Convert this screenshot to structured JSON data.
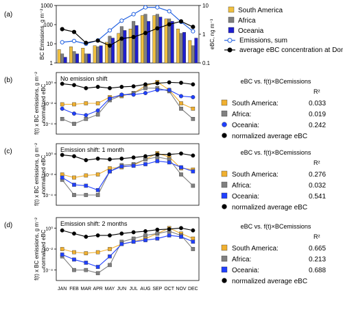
{
  "chart_data": [
    {
      "panel_label": "(a)",
      "type": "bar",
      "ylabel_left": "BC Emissions, g m⁻²",
      "ylabel_right": "eBC, ng m⁻³",
      "yscale": "log",
      "ylim": [
        1,
        1000
      ],
      "yticks": [
        "1",
        "10",
        "100",
        "1000"
      ],
      "ylim_right": [
        0.1,
        10
      ],
      "yticks_right": [
        "0.1",
        "1",
        "10"
      ],
      "categories": [
        "JAN",
        "FEB",
        "MAR",
        "APR",
        "MAY",
        "JUN",
        "JUL",
        "AUG",
        "SEP",
        "OCT",
        "NOV",
        "DEC"
      ],
      "series": [
        {
          "name": "South America",
          "color": "#f0c040",
          "values": [
            5,
            7,
            6,
            8,
            12,
            35,
            60,
            300,
            300,
            200,
            60,
            15
          ]
        },
        {
          "name": "Africa",
          "color": "#7f7f7f",
          "values": [
            3,
            4,
            3,
            7,
            25,
            80,
            150,
            350,
            350,
            200,
            35,
            8
          ]
        },
        {
          "name": "Oceania",
          "color": "#1f1fd0",
          "values": [
            2,
            3,
            3,
            8,
            20,
            50,
            90,
            150,
            250,
            150,
            40,
            20
          ]
        }
      ],
      "lines": [
        {
          "name": "Emissions, sum",
          "color": "#1f5fe0",
          "marker": "open-circle",
          "values": [
            12,
            14,
            10,
            15,
            50,
            160,
            350,
            800,
            800,
            500,
            140,
            45
          ]
        },
        {
          "name": "average eBC concentration at Dome C",
          "color": "#000000",
          "marker": "filled-circle",
          "axis": "right",
          "values": [
            1.5,
            1.2,
            0.5,
            0.6,
            0.4,
            0.7,
            0.8,
            1.1,
            1.6,
            2.2,
            2.8,
            1.8
          ]
        }
      ]
    },
    {
      "panel_label": "(b)",
      "type": "line",
      "annotation": "No emission shift",
      "ylabel": "f(t) x BC emissions, g m⁻² normalized eBC",
      "yscale": "log",
      "ylim": [
        1e-05,
        10
      ],
      "yticks": [
        "10⁻⁴",
        "10⁻²",
        "10⁰"
      ],
      "categories": [
        "JAN",
        "FEB",
        "MAR",
        "APR",
        "MAY",
        "JUN",
        "JUL",
        "AUG",
        "SEP",
        "OCT",
        "NOV",
        "DEC"
      ],
      "legend_title": "eBC vs. f(t)×BCemissions",
      "legend_r2_header": "R²",
      "series": [
        {
          "name": "South America:",
          "color": "#f0b030",
          "marker": "square",
          "r2": "0.033",
          "values": [
            0.008,
            0.008,
            0.01,
            0.01,
            0.04,
            0.05,
            0.1,
            0.5,
            1.2,
            0.2,
            0.01,
            0.003
          ]
        },
        {
          "name": "Africa:",
          "color": "#808080",
          "marker": "square",
          "r2": "0.019",
          "values": [
            0.0003,
            0.0001,
            0.0003,
            0.0008,
            0.02,
            0.06,
            0.1,
            0.3,
            0.3,
            0.15,
            0.003,
            0.0003
          ]
        },
        {
          "name": "Oceania:",
          "color": "#2040ff",
          "marker": "circle",
          "r2": "0.242",
          "values": [
            0.003,
            0.001,
            0.0007,
            0.002,
            0.03,
            0.07,
            0.07,
            0.1,
            0.2,
            0.2,
            0.05,
            0.04
          ]
        },
        {
          "name": "normalized average eBC",
          "color": "#000000",
          "marker": "circle",
          "values": [
            0.8,
            0.6,
            0.3,
            0.4,
            0.3,
            0.4,
            0.45,
            0.7,
            0.9,
            1.1,
            1.0,
            0.7
          ]
        }
      ]
    },
    {
      "panel_label": "(c)",
      "type": "line",
      "annotation": "Emission shift: 1 month",
      "ylabel": "f(t) x BC emissions, g m⁻² normalized eBC",
      "yscale": "log",
      "ylim": [
        1e-05,
        10
      ],
      "yticks": [
        "10⁻⁴",
        "10⁻²",
        "10⁰"
      ],
      "categories": [
        "JAN",
        "FEB",
        "MAR",
        "APR",
        "MAY",
        "JUN",
        "JUL",
        "AUG",
        "SEP",
        "OCT",
        "NOV",
        "DEC"
      ],
      "legend_title": "eBC vs. f(t)×BCemissions",
      "legend_r2_header": "R²",
      "series": [
        {
          "name": "South America:",
          "color": "#f0b030",
          "marker": "square",
          "r2": "0.276",
          "values": [
            0.01,
            0.005,
            0.008,
            0.01,
            0.04,
            0.05,
            0.08,
            0.3,
            1.2,
            0.5,
            0.04,
            0.03
          ]
        },
        {
          "name": "Africa:",
          "color": "#808080",
          "marker": "square",
          "r2": "0.032",
          "values": [
            0.003,
            0.0001,
            0.0001,
            0.0001,
            0.02,
            0.08,
            0.1,
            0.3,
            0.5,
            0.3,
            0.01,
            0.0008
          ]
        },
        {
          "name": "Oceania:",
          "color": "#2040ff",
          "marker": "square",
          "r2": "0.541",
          "values": [
            0.005,
            0.001,
            0.0008,
            0.0003,
            0.02,
            0.06,
            0.07,
            0.1,
            0.2,
            0.15,
            0.05,
            0.02
          ]
        },
        {
          "name": "normalized average eBC",
          "color": "#000000",
          "marker": "circle",
          "values": [
            0.8,
            0.6,
            0.25,
            0.35,
            0.3,
            0.35,
            0.45,
            0.6,
            0.9,
            0.9,
            1.1,
            0.7
          ]
        }
      ]
    },
    {
      "panel_label": "(d)",
      "type": "line",
      "annotation": "Emission shift: 2 months",
      "ylabel": "f(t) x BC emissions, g m⁻² normalized eBC",
      "yscale": "log",
      "ylim": [
        1e-05,
        10
      ],
      "yticks": [
        "10⁻⁴",
        "10⁻²",
        "10⁰"
      ],
      "categories": [
        "JAN",
        "FEB",
        "MAR",
        "APR",
        "MAY",
        "JUN",
        "JUL",
        "AUG",
        "SEP",
        "OCT",
        "NOV",
        "DEC"
      ],
      "legend_title": "eBC vs. f(t)×BCemissions",
      "legend_r2_header": "R²",
      "series": [
        {
          "name": "South America:",
          "color": "#f0b030",
          "marker": "square",
          "r2": "0.665",
          "values": [
            0.01,
            0.005,
            0.004,
            0.005,
            0.01,
            0.03,
            0.05,
            0.1,
            0.3,
            1.0,
            0.3,
            0.1
          ]
        },
        {
          "name": "Africa:",
          "color": "#808080",
          "marker": "square",
          "r2": "0.213",
          "values": [
            0.002,
            0.0001,
            0.0001,
            5e-05,
            0.0003,
            0.05,
            0.1,
            0.2,
            0.3,
            0.5,
            0.2,
            0.01
          ]
        },
        {
          "name": "Oceania:",
          "color": "#2040ff",
          "marker": "square",
          "r2": "0.688",
          "values": [
            0.003,
            0.001,
            0.0005,
            0.0002,
            0.002,
            0.03,
            0.05,
            0.07,
            0.1,
            0.2,
            0.15,
            0.05
          ]
        },
        {
          "name": "normalized average eBC",
          "color": "#000000",
          "marker": "circle",
          "values": [
            0.6,
            0.3,
            0.15,
            0.2,
            0.2,
            0.3,
            0.4,
            0.5,
            0.7,
            0.8,
            1.0,
            0.6
          ]
        }
      ]
    }
  ]
}
